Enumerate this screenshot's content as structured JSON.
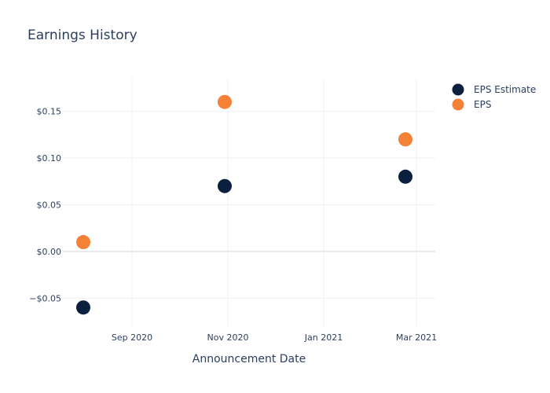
{
  "chart_data": {
    "type": "scatter",
    "title": "Earnings History",
    "xlabel": "Announcement Date",
    "ylabel": "",
    "x_tick_labels": [
      {
        "date": "2020-09-01",
        "label": "Sep 2020"
      },
      {
        "date": "2020-11-01",
        "label": "Nov 2020"
      },
      {
        "date": "2021-01-01",
        "label": "Jan 2021"
      },
      {
        "date": "2021-03-01",
        "label": "Mar 2021"
      }
    ],
    "y_tick_labels": [
      {
        "value": -0.05,
        "label": "−$0.05"
      },
      {
        "value": 0.0,
        "label": "$0.00"
      },
      {
        "value": 0.05,
        "label": "$0.05"
      },
      {
        "value": 0.1,
        "label": "$0.10"
      },
      {
        "value": 0.15,
        "label": "$0.15"
      }
    ],
    "xlim": [
      "2020-07-19",
      "2021-03-13"
    ],
    "ylim": [
      -0.08,
      0.185
    ],
    "grid": true,
    "legend_position": "top-right",
    "series": [
      {
        "name": "EPS Estimate",
        "color": "#0b1f3f",
        "points": [
          {
            "x": "2020-08-01",
            "y": -0.06
          },
          {
            "x": "2020-10-30",
            "y": 0.07
          },
          {
            "x": "2021-02-22",
            "y": 0.08
          }
        ]
      },
      {
        "name": "EPS",
        "color": "#f58137",
        "points": [
          {
            "x": "2020-08-01",
            "y": 0.01
          },
          {
            "x": "2020-10-30",
            "y": 0.16
          },
          {
            "x": "2021-02-22",
            "y": 0.12
          }
        ]
      }
    ]
  }
}
